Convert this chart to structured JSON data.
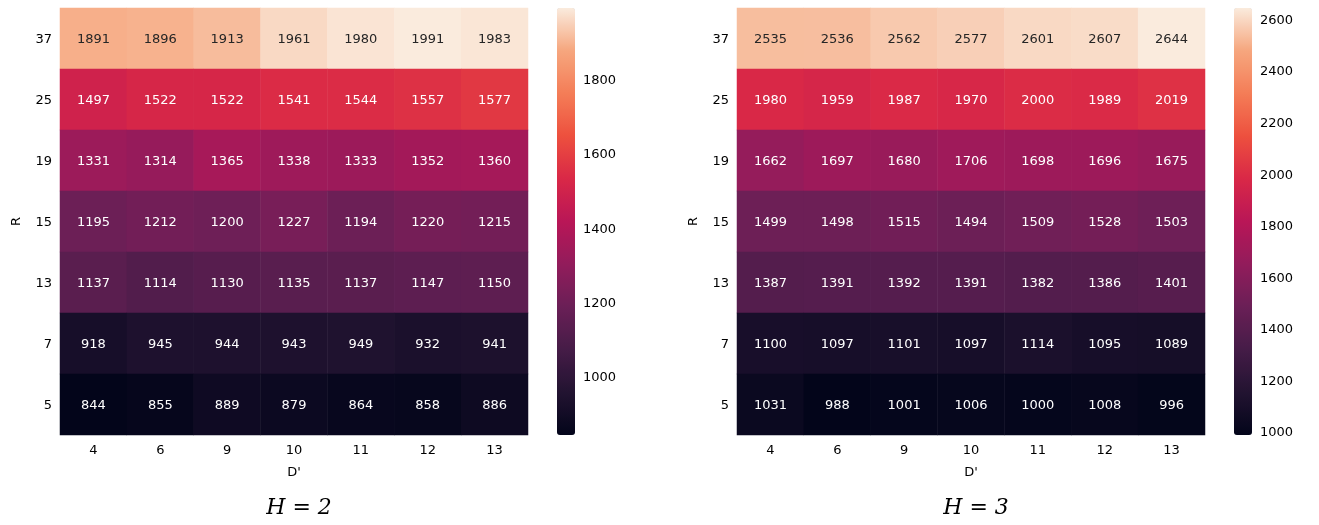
{
  "chart_data": [
    {
      "type": "heatmap",
      "title": "H = 2",
      "xlabel": "D'",
      "ylabel": "R",
      "categories": [
        "4",
        "6",
        "9",
        "10",
        "11",
        "12",
        "13"
      ],
      "y_categories": [
        "37",
        "25",
        "19",
        "15",
        "13",
        "7",
        "5"
      ],
      "cells": [
        [
          1891,
          1896,
          1913,
          1961,
          1980,
          1991,
          1983
        ],
        [
          1497,
          1522,
          1522,
          1541,
          1544,
          1557,
          1577
        ],
        [
          1331,
          1314,
          1365,
          1338,
          1333,
          1352,
          1360
        ],
        [
          1195,
          1212,
          1200,
          1227,
          1194,
          1220,
          1215
        ],
        [
          1137,
          1114,
          1130,
          1135,
          1137,
          1147,
          1150
        ],
        [
          918,
          945,
          944,
          943,
          949,
          932,
          941
        ],
        [
          844,
          855,
          889,
          879,
          864,
          858,
          886
        ]
      ],
      "clim": [
        844,
        1991
      ],
      "cticks": [
        1000,
        1200,
        1400,
        1600,
        1800
      ],
      "data_labels": true
    },
    {
      "type": "heatmap",
      "title": "H = 3",
      "xlabel": "D'",
      "ylabel": "R",
      "categories": [
        "4",
        "6",
        "9",
        "10",
        "11",
        "12",
        "13"
      ],
      "y_categories": [
        "37",
        "25",
        "19",
        "15",
        "13",
        "7",
        "5"
      ],
      "cells": [
        [
          2535,
          2536,
          2562,
          2577,
          2601,
          2607,
          2644
        ],
        [
          1980,
          1959,
          1987,
          1970,
          2000,
          1989,
          2019
        ],
        [
          1662,
          1697,
          1680,
          1706,
          1698,
          1696,
          1675
        ],
        [
          1499,
          1498,
          1515,
          1494,
          1509,
          1528,
          1503
        ],
        [
          1387,
          1391,
          1392,
          1391,
          1382,
          1386,
          1401
        ],
        [
          1100,
          1097,
          1101,
          1097,
          1114,
          1095,
          1089
        ],
        [
          1031,
          988,
          1001,
          1006,
          1000,
          1008,
          996
        ]
      ],
      "clim": [
        988,
        2644
      ],
      "cticks": [
        1000,
        1200,
        1400,
        1600,
        1800,
        2000,
        2200,
        2400,
        2600
      ],
      "data_labels": true
    }
  ]
}
